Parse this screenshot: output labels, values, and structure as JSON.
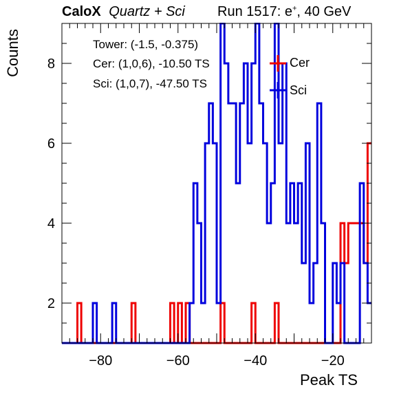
{
  "header": {
    "brand": "CaloX",
    "subtitle": "Quartz + Sci",
    "run_prefix": "Run 1517: e",
    "run_sup": "+",
    "run_suffix": ", 40 GeV"
  },
  "info": {
    "tower": "Tower: (-1.5, -0.375)",
    "cer": "Cer: (1,0,6), -10.50 TS",
    "sci": "Sci: (1,0,7), -47.50 TS"
  },
  "colors": {
    "cer": "#ee0000",
    "sci": "#0000dd",
    "axis": "#000000"
  },
  "chart_data": {
    "type": "histogram",
    "xlabel": "Peak TS",
    "ylabel": "Counts",
    "xlim": [
      -90,
      -10
    ],
    "ylim": [
      1,
      9
    ],
    "bin_width": 1,
    "x_ticks": [
      -80,
      -60,
      -40,
      -20
    ],
    "y_ticks": [
      2,
      4,
      6,
      8
    ],
    "legend_position": "top-right",
    "series": [
      {
        "name": "Cer",
        "color": "#ee0000",
        "bins": [
          {
            "x": -86,
            "count": 2
          },
          {
            "x": -72,
            "count": 2
          },
          {
            "x": -62,
            "count": 2
          },
          {
            "x": -60,
            "count": 2
          },
          {
            "x": -58,
            "count": 2
          },
          {
            "x": -49,
            "count": 2
          },
          {
            "x": -41,
            "count": 2
          },
          {
            "x": -35,
            "count": 2
          },
          {
            "x": -18,
            "count": 4
          },
          {
            "x": -17,
            "count": 3
          },
          {
            "x": -16,
            "count": 4
          },
          {
            "x": -15,
            "count": 4
          },
          {
            "x": -14,
            "count": 4
          },
          {
            "x": -13,
            "count": 4
          },
          {
            "x": -12,
            "count": 3
          },
          {
            "x": -11,
            "count": 6
          }
        ]
      },
      {
        "name": "Sci",
        "color": "#0000dd",
        "bins": [
          {
            "x": -82,
            "count": 2
          },
          {
            "x": -77,
            "count": 2
          },
          {
            "x": -57,
            "count": 2
          },
          {
            "x": -56,
            "count": 5
          },
          {
            "x": -55,
            "count": 4
          },
          {
            "x": -54,
            "count": 2
          },
          {
            "x": -53,
            "count": 6
          },
          {
            "x": -52,
            "count": 7
          },
          {
            "x": -51,
            "count": 6
          },
          {
            "x": -50,
            "count": 2
          },
          {
            "x": -49,
            "count": 9
          },
          {
            "x": -48,
            "count": 8
          },
          {
            "x": -47,
            "count": 7
          },
          {
            "x": -46,
            "count": 7
          },
          {
            "x": -45,
            "count": 5
          },
          {
            "x": -44,
            "count": 7
          },
          {
            "x": -43,
            "count": 8
          },
          {
            "x": -42,
            "count": 6
          },
          {
            "x": -41,
            "count": 8
          },
          {
            "x": -40,
            "count": 9
          },
          {
            "x": -39,
            "count": 7
          },
          {
            "x": -38,
            "count": 6
          },
          {
            "x": -37,
            "count": 4
          },
          {
            "x": -36,
            "count": 5
          },
          {
            "x": -35,
            "count": 9
          },
          {
            "x": -34,
            "count": 6
          },
          {
            "x": -33,
            "count": 8
          },
          {
            "x": -32,
            "count": 4
          },
          {
            "x": -31,
            "count": 5
          },
          {
            "x": -30,
            "count": 4
          },
          {
            "x": -29,
            "count": 5
          },
          {
            "x": -28,
            "count": 3
          },
          {
            "x": -27,
            "count": 6
          },
          {
            "x": -26,
            "count": 2
          },
          {
            "x": -25,
            "count": 3
          },
          {
            "x": -24,
            "count": 7
          },
          {
            "x": -23,
            "count": 4
          },
          {
            "x": -22,
            "count": 1
          },
          {
            "x": -21,
            "count": 1
          },
          {
            "x": -20,
            "count": 3
          },
          {
            "x": -19,
            "count": 2
          },
          {
            "x": -18,
            "count": 3
          },
          {
            "x": -15,
            "count": 1
          },
          {
            "x": -14,
            "count": 1
          },
          {
            "x": -13,
            "count": 5
          },
          {
            "x": -12,
            "count": 3
          },
          {
            "x": -11,
            "count": 2
          }
        ]
      }
    ]
  }
}
